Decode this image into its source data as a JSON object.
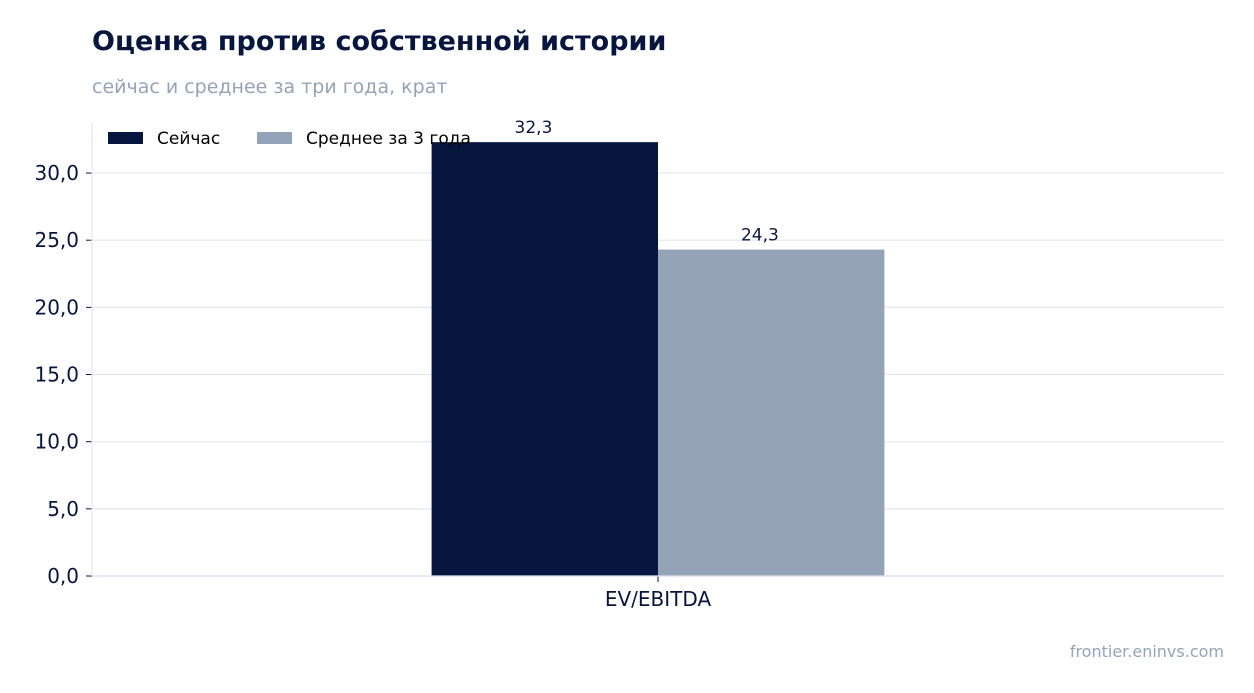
{
  "title": "Оценка против собственной истории",
  "subtitle": "сейчас и среднее за три года, крат",
  "footer": "frontier.eninvs.com",
  "colors": {
    "text_dark": "#06163f",
    "text_muted": "#94a3b8",
    "grid": "#e2e6ef"
  },
  "chart_data": {
    "type": "bar",
    "categories": [
      "EV/EBITDA"
    ],
    "series": [
      {
        "name": "Сейчас",
        "values": [
          32.3
        ],
        "labels": [
          "32,3"
        ],
        "color": "#06163f"
      },
      {
        "name": "Среднее за 3 года",
        "values": [
          24.3
        ],
        "labels": [
          "24,3"
        ],
        "color": "#94a3b8"
      }
    ],
    "ylim": [
      0,
      33.8
    ],
    "yticks": [
      0,
      5,
      10,
      15,
      20,
      25,
      30
    ],
    "ytick_labels": [
      "0,0",
      "5,0",
      "10,0",
      "15,0",
      "20,0",
      "25,0",
      "30,0"
    ],
    "xlabel": "",
    "ylabel": "",
    "grid": true,
    "legend": "top-left"
  }
}
